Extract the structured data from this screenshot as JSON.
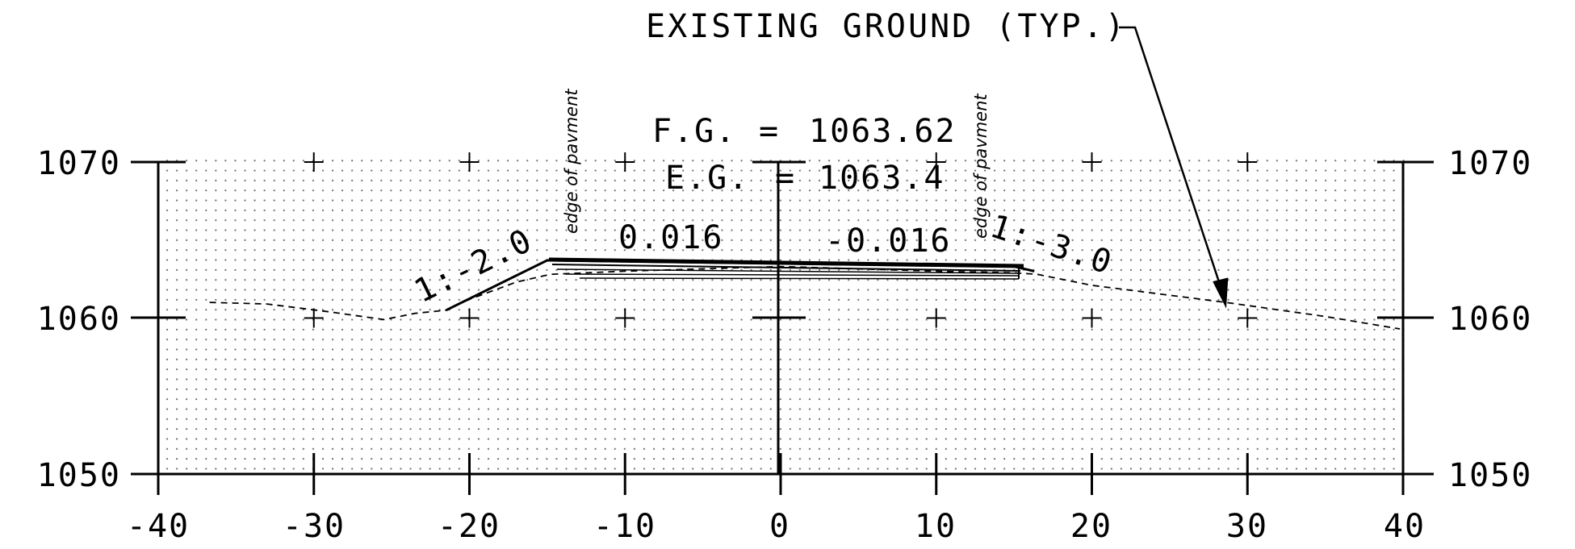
{
  "title_callout": "EXISTING GROUND (TYP.)",
  "fg_label": "F.G.",
  "fg_eq": "=",
  "fg_value": "1063.62",
  "eg_label": "E.G.",
  "eg_eq": "=",
  "eg_value": "1063.4",
  "edge_left": "edge of pavment",
  "edge_right": "edge of pavment",
  "slope_left": "1:-2.0",
  "slope_right": "1:-3.0",
  "cross_left": "0.016",
  "cross_right": "-0.016",
  "chart_data": {
    "type": "line",
    "x_ticks": [
      "-40",
      "-30",
      "-20",
      "-10",
      "0",
      "10",
      "20",
      "30",
      "40"
    ],
    "y_ticks_left": [
      "1070",
      "1060",
      "1050"
    ],
    "y_ticks_right": [
      "1070",
      "1060",
      "1050"
    ],
    "xlim": [
      -40,
      40
    ],
    "ylim": [
      1050,
      1070
    ],
    "grid": "dotted",
    "series": [
      {
        "style": "dashed",
        "points": [
          [
            -36.7,
            1061.0
          ],
          [
            -33,
            1060.9
          ],
          [
            -29,
            1060.4
          ],
          [
            -25.5,
            1059.9
          ],
          [
            -23.5,
            1060.3
          ],
          [
            -21.5,
            1060.5
          ],
          [
            -20,
            1061.2
          ],
          [
            -17,
            1062.3
          ],
          [
            -14.8,
            1062.8
          ],
          [
            -10,
            1063.0
          ],
          [
            0,
            1063.3
          ],
          [
            10,
            1063.0
          ],
          [
            15,
            1062.9
          ],
          [
            16.5,
            1062.8
          ],
          [
            20,
            1062.1
          ],
          [
            28.6,
            1061.0
          ],
          [
            35,
            1060.1
          ],
          [
            39.8,
            1059.3
          ]
        ]
      },
      {
        "style": "solid",
        "points": [
          [
            -21.5,
            1060.5
          ],
          [
            -15,
            1063.7
          ],
          [
            0,
            1063.5
          ],
          [
            15,
            1063.3
          ],
          [
            16.3,
            1063.0
          ]
        ]
      }
    ]
  }
}
